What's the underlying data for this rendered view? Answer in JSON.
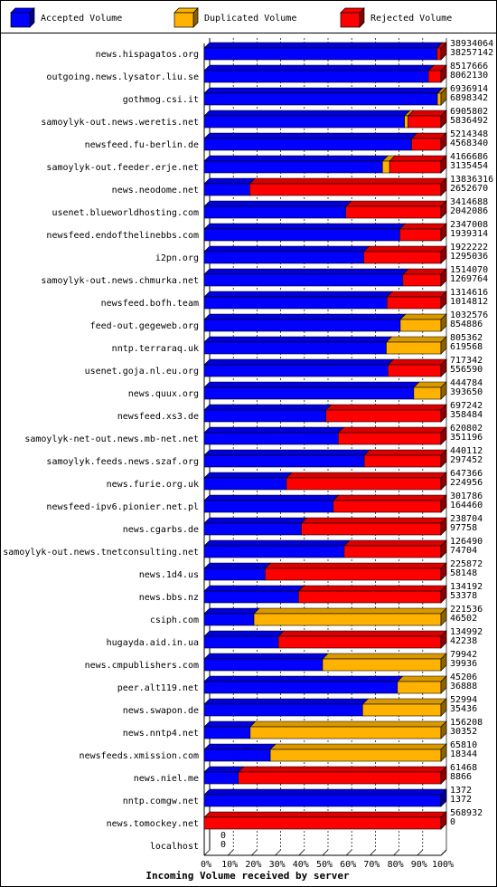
{
  "chart_data": {
    "type": "bar",
    "orientation": "horizontal",
    "stacked": true,
    "title": "",
    "xlabel": "Incoming Volume received by server",
    "ylabel": "",
    "xlim": [
      0,
      100
    ],
    "x_unit": "percent",
    "x_ticks": [
      "0%",
      "10%",
      "20%",
      "30%",
      "40%",
      "50%",
      "60%",
      "70%",
      "80%",
      "90%",
      "100%"
    ],
    "grid": true,
    "legend_position": "top",
    "legend": [
      {
        "name": "Accepted Volume",
        "color": "#0000ff"
      },
      {
        "name": "Duplicated Volume",
        "color": "#ffb300"
      },
      {
        "name": "Rejected Volume",
        "color": "#ff0000"
      }
    ],
    "categories": [
      "news.hispagatos.org",
      "outgoing.news.lysator.liu.se",
      "gothmog.csi.it",
      "samoylyk-out.news.weretis.net",
      "newsfeed.fu-berlin.de",
      "samoylyk-out.feeder.erje.net",
      "news.neodome.net",
      "usenet.blueworldhosting.com",
      "newsfeed.endofthelinebbs.com",
      "i2pn.org",
      "samoylyk-out.news.chmurka.net",
      "newsfeed.bofh.team",
      "feed-out.gegeweb.org",
      "nntp.terraraq.uk",
      "usenet.goja.nl.eu.org",
      "news.quux.org",
      "newsfeed.xs3.de",
      "samoylyk-net-out.news.mb-net.net",
      "samoylyk.feeds.news.szaf.org",
      "news.furie.org.uk",
      "newsfeed-ipv6.pionier.net.pl",
      "news.cgarbs.de",
      "samoylyk-out.news.tnetconsulting.net",
      "news.1d4.us",
      "news.bbs.nz",
      "csiph.com",
      "hugayda.aid.in.ua",
      "news.cmpublishers.com",
      "peer.alt119.net",
      "news.swapon.de",
      "news.nntp4.net",
      "newsfeeds.xmission.com",
      "news.niel.me",
      "nntp.comgw.net",
      "news.tomockey.net",
      "localhost"
    ],
    "total_volume": [
      "38934064",
      "8517666",
      "6936914",
      "6905802",
      "5214348",
      "4166686",
      "13836316",
      "3414688",
      "2347008",
      "1922222",
      "1514070",
      "1314616",
      "1032576",
      "805362",
      "717342",
      "444784",
      "697242",
      "620802",
      "440112",
      "647366",
      "301786",
      "238704",
      "126490",
      "225872",
      "134192",
      "221536",
      "134992",
      "79942",
      "45206",
      "52994",
      "156208",
      "65810",
      "61468",
      "1372",
      "568932",
      "0"
    ],
    "accepted_volume": [
      "38257142",
      "8062130",
      "6898342",
      "5836492",
      "4568340",
      "3135454",
      "2652670",
      "2042086",
      "1939314",
      "1295036",
      "1269764",
      "1014812",
      "854886",
      "619568",
      "556590",
      "393650",
      "358484",
      "351196",
      "297452",
      "224956",
      "164460",
      "97758",
      "74704",
      "58148",
      "53378",
      "46502",
      "42238",
      "39936",
      "36888",
      "35436",
      "30352",
      "18344",
      "8866",
      "1372",
      "0",
      "0"
    ],
    "series": [
      {
        "name": "Accepted Volume",
        "values": [
          98.3,
          94.7,
          98.5,
          84.6,
          87.6,
          75.3,
          19.2,
          59.8,
          82.6,
          67.4,
          83.9,
          77.2,
          82.8,
          76.9,
          77.6,
          88.5,
          51.4,
          56.6,
          67.6,
          34.7,
          54.5,
          41.0,
          59.1,
          25.7,
          39.8,
          21.0,
          31.3,
          50.0,
          81.6,
          66.9,
          19.4,
          27.9,
          14.4,
          100,
          0,
          0
        ]
      },
      {
        "name": "Duplicated Volume",
        "values": [
          0,
          0,
          1.5,
          1.5,
          0,
          3,
          0,
          0,
          0,
          0,
          0,
          0,
          17.2,
          23.1,
          0,
          11.5,
          0,
          0,
          0,
          0,
          0,
          0,
          0,
          0,
          0,
          79.0,
          0,
          50.0,
          18.4,
          33.1,
          80.6,
          72.1,
          0,
          0,
          0,
          0
        ]
      },
      {
        "name": "Rejected Volume",
        "values": [
          1.7,
          5.3,
          0,
          13.9,
          12.4,
          21.7,
          80.8,
          40.2,
          17.4,
          32.6,
          16.1,
          22.8,
          0,
          0,
          22.4,
          0,
          48.6,
          43.4,
          32.4,
          65.3,
          45.5,
          59.0,
          40.9,
          74.3,
          60.2,
          0,
          68.7,
          0,
          0,
          0,
          0,
          0,
          85.6,
          0,
          100,
          0
        ]
      }
    ]
  }
}
